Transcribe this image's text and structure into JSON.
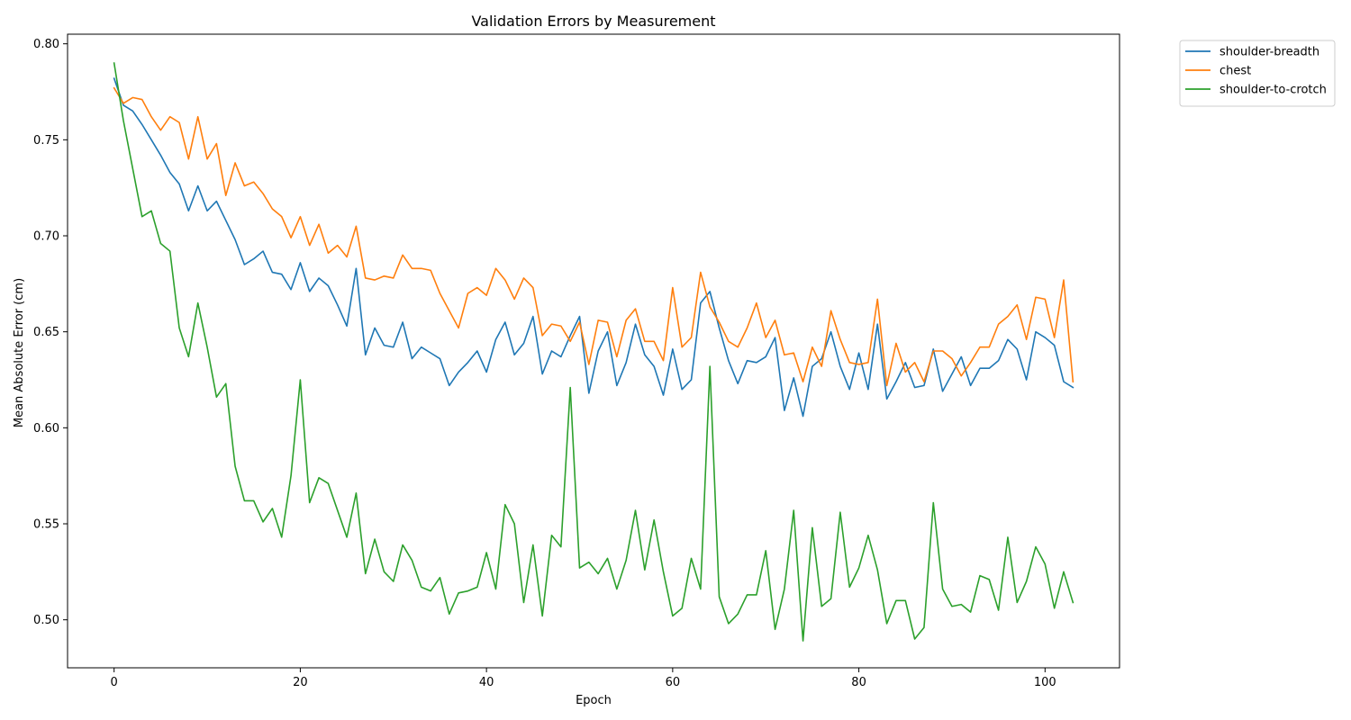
{
  "chart_data": {
    "type": "line",
    "title": "Validation Errors by Measurement",
    "xlabel": "Epoch",
    "ylabel": "Mean Absolute Error (cm)",
    "xlim": [
      -5,
      108
    ],
    "ylim": [
      0.475,
      0.805
    ],
    "xticks": [
      0,
      20,
      40,
      60,
      80,
      100
    ],
    "yticks": [
      0.5,
      0.55,
      0.6,
      0.65,
      0.7,
      0.75,
      0.8
    ],
    "grid": false,
    "legend_position": "outside-top-right",
    "series": [
      {
        "name": "shoulder-breadth",
        "color": "#1f77b4",
        "values": [
          0.782,
          0.768,
          0.765,
          0.758,
          0.75,
          0.742,
          0.733,
          0.727,
          0.713,
          0.726,
          0.713,
          0.718,
          0.708,
          0.698,
          0.685,
          0.688,
          0.692,
          0.681,
          0.68,
          0.672,
          0.686,
          0.671,
          0.678,
          0.674,
          0.664,
          0.653,
          0.683,
          0.638,
          0.652,
          0.643,
          0.642,
          0.655,
          0.636,
          0.642,
          0.639,
          0.636,
          0.622,
          0.629,
          0.634,
          0.64,
          0.629,
          0.646,
          0.655,
          0.638,
          0.644,
          0.658,
          0.628,
          0.64,
          0.637,
          0.648,
          0.658,
          0.618,
          0.64,
          0.65,
          0.622,
          0.634,
          0.654,
          0.638,
          0.632,
          0.617,
          0.641,
          0.62,
          0.625,
          0.665,
          0.671,
          0.652,
          0.635,
          0.623,
          0.635,
          0.634,
          0.637,
          0.647,
          0.609,
          0.626,
          0.606,
          0.632,
          0.636,
          0.65,
          0.632,
          0.62,
          0.639,
          0.62,
          0.654,
          0.615,
          0.624,
          0.634,
          0.621,
          0.622,
          0.641,
          0.619,
          0.628,
          0.637,
          0.622,
          0.631,
          0.631,
          0.635,
          0.646,
          0.641,
          0.625,
          0.65,
          0.647,
          0.643,
          0.624,
          0.621
        ]
      },
      {
        "name": "chest",
        "color": "#ff7f0e",
        "values": [
          0.777,
          0.769,
          0.772,
          0.771,
          0.762,
          0.755,
          0.762,
          0.759,
          0.74,
          0.762,
          0.74,
          0.748,
          0.721,
          0.738,
          0.726,
          0.728,
          0.722,
          0.714,
          0.71,
          0.699,
          0.71,
          0.695,
          0.706,
          0.691,
          0.695,
          0.689,
          0.705,
          0.678,
          0.677,
          0.679,
          0.678,
          0.69,
          0.683,
          0.683,
          0.682,
          0.67,
          0.661,
          0.652,
          0.67,
          0.673,
          0.669,
          0.683,
          0.677,
          0.667,
          0.678,
          0.673,
          0.648,
          0.654,
          0.653,
          0.645,
          0.655,
          0.633,
          0.656,
          0.655,
          0.637,
          0.656,
          0.662,
          0.645,
          0.645,
          0.635,
          0.673,
          0.642,
          0.647,
          0.681,
          0.663,
          0.655,
          0.645,
          0.642,
          0.652,
          0.665,
          0.647,
          0.656,
          0.638,
          0.639,
          0.624,
          0.642,
          0.632,
          0.661,
          0.646,
          0.634,
          0.633,
          0.634,
          0.667,
          0.622,
          0.644,
          0.629,
          0.634,
          0.624,
          0.64,
          0.64,
          0.636,
          0.627,
          0.634,
          0.642,
          0.642,
          0.654,
          0.658,
          0.664,
          0.646,
          0.668,
          0.667,
          0.647,
          0.677,
          0.624
        ]
      },
      {
        "name": "shoulder-to-crotch",
        "color": "#2ca02c",
        "values": [
          0.79,
          0.76,
          0.735,
          0.71,
          0.713,
          0.696,
          0.692,
          0.652,
          0.637,
          0.665,
          0.642,
          0.616,
          0.623,
          0.58,
          0.562,
          0.562,
          0.551,
          0.558,
          0.543,
          0.575,
          0.625,
          0.561,
          0.574,
          0.571,
          0.557,
          0.543,
          0.566,
          0.524,
          0.542,
          0.525,
          0.52,
          0.539,
          0.531,
          0.517,
          0.515,
          0.522,
          0.503,
          0.514,
          0.515,
          0.517,
          0.535,
          0.516,
          0.56,
          0.55,
          0.509,
          0.539,
          0.502,
          0.544,
          0.538,
          0.621,
          0.527,
          0.53,
          0.524,
          0.532,
          0.516,
          0.531,
          0.557,
          0.526,
          0.552,
          0.525,
          0.502,
          0.506,
          0.532,
          0.516,
          0.632,
          0.512,
          0.498,
          0.503,
          0.513,
          0.513,
          0.536,
          0.495,
          0.516,
          0.557,
          0.489,
          0.548,
          0.507,
          0.511,
          0.556,
          0.517,
          0.527,
          0.544,
          0.526,
          0.498,
          0.51,
          0.51,
          0.49,
          0.496,
          0.561,
          0.516,
          0.507,
          0.508,
          0.504,
          0.523,
          0.521,
          0.505,
          0.543,
          0.509,
          0.52,
          0.538,
          0.529,
          0.506,
          0.525,
          0.509
        ]
      }
    ]
  }
}
